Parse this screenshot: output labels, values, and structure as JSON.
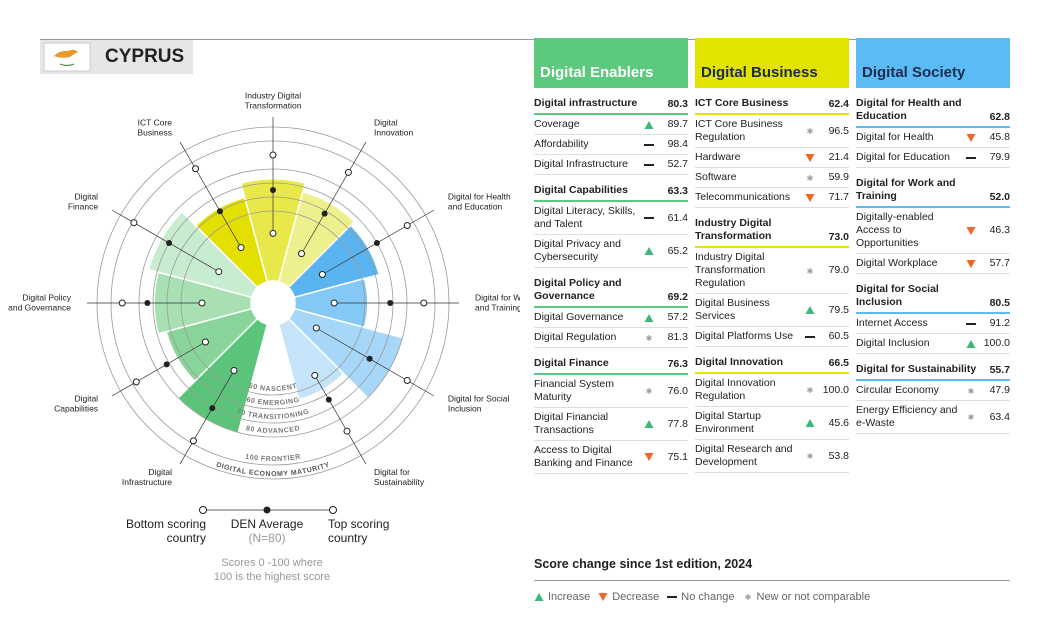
{
  "header": {
    "country": "CYPRUS"
  },
  "radial": {
    "segments": [
      {
        "label": [
          "ICT Core",
          "Business"
        ],
        "color": "#e3df00",
        "value": 62.4,
        "bottom": 30,
        "average": 60,
        "top": 95
      },
      {
        "label": [
          "Industry Digital",
          "Transformation"
        ],
        "color": "#e8e84a",
        "value": 73,
        "bottom": 34,
        "average": 65,
        "top": 90
      },
      {
        "label": [
          "Digital",
          "Innovation"
        ],
        "color": "#eef08e",
        "value": 66.5,
        "bottom": 25,
        "average": 58,
        "top": 92
      },
      {
        "label": [
          "Digital for Health",
          "and Education"
        ],
        "color": "#5ab4f0",
        "value": 62.8,
        "bottom": 25,
        "average": 70,
        "top": 95
      },
      {
        "label": [
          "Digital for Work",
          "and Training"
        ],
        "color": "#84c8f5",
        "value": 52,
        "bottom": 28,
        "average": 68,
        "top": 92
      },
      {
        "label": [
          "Digital for Social",
          "Inclusion"
        ],
        "color": "#a6d6f8",
        "value": 80.5,
        "bottom": 20,
        "average": 64,
        "top": 95
      },
      {
        "label": [
          "Digital for",
          "Sustainability"
        ],
        "color": "#c5e4fa",
        "value": 55.7,
        "bottom": 44,
        "average": 64,
        "top": 90
      },
      {
        "label": [
          "Digital",
          "Infrastructure"
        ],
        "color": "#5cc47a",
        "value": 80.3,
        "bottom": 40,
        "average": 71,
        "top": 98
      },
      {
        "label": [
          "Digital",
          "Capabilities"
        ],
        "color": "#88d49a",
        "value": 63.3,
        "bottom": 40,
        "average": 72,
        "top": 97
      },
      {
        "label": [
          "Digital Policy",
          "and Governance"
        ],
        "color": "#a8e0b3",
        "value": 69.2,
        "bottom": 35,
        "average": 74,
        "top": 92
      },
      {
        "label": [
          "Digital",
          "Finance"
        ],
        "color": "#c8ecd0",
        "value": 76.3,
        "bottom": 29,
        "average": 70,
        "top": 99
      }
    ],
    "rings": [
      {
        "value": 50,
        "label": "50 NASCENT"
      },
      {
        "value": 60,
        "label": "60 EMERGING"
      },
      {
        "value": 70,
        "label": "70 TRANSITIONING"
      },
      {
        "value": 80,
        "label": "80 ADVANCED"
      },
      {
        "value": 100,
        "label": "100 FRONTIER"
      }
    ],
    "scale_title": "DIGITAL ECONOMY MATURITY",
    "legend": {
      "bottom": [
        "Bottom scoring",
        "country"
      ],
      "average": "DEN Average",
      "average_n": "(N=80)",
      "top": [
        "Top scoring",
        "country"
      ]
    },
    "note": [
      "Scores 0 -100 where",
      "100 is the highest score"
    ]
  },
  "columns": [
    {
      "title": "Digital Enablers",
      "color": "#5cc97f",
      "title_color": "#ffffff",
      "pillars": [
        {
          "name": "Digital infrastructure",
          "score": "80.3",
          "indicators": [
            {
              "name": "Coverage",
              "change": "increase",
              "value": "89.7"
            },
            {
              "name": "Affordability",
              "change": "none",
              "value": "98.4"
            },
            {
              "name": "Digital Infrastructure",
              "change": "none",
              "value": "52.7"
            }
          ]
        },
        {
          "name": "Digital Capabilities",
          "score": "63.3",
          "indicators": [
            {
              "name": "Digital Literacy, Skills, and Talent",
              "change": "none",
              "value": "61.4"
            },
            {
              "name": "Digital Privacy and Cybersecurity",
              "change": "increase",
              "value": "65.2"
            }
          ]
        },
        {
          "name": "Digital Policy and Governance",
          "score": "69.2",
          "indicators": [
            {
              "name": "Digital Governance",
              "change": "increase",
              "value": "57.2"
            },
            {
              "name": "Digital Regulation",
              "change": "new",
              "value": "81.3"
            }
          ]
        },
        {
          "name": "Digital Finance",
          "score": "76.3",
          "indicators": [
            {
              "name": "Financial System Maturity",
              "change": "new",
              "value": "76.0"
            },
            {
              "name": "Digital Financial Transactions",
              "change": "increase",
              "value": "77.8"
            },
            {
              "name": "Access to Digital Banking and Finance",
              "change": "decrease",
              "value": "75.1"
            }
          ]
        }
      ]
    },
    {
      "title": "Digital Business",
      "color": "#e3e300",
      "title_color": "#1d2b4f",
      "pillars": [
        {
          "name": "ICT Core Business",
          "score": "62.4",
          "indicators": [
            {
              "name": "ICT Core Business Regulation",
              "change": "new",
              "value": "96.5"
            },
            {
              "name": "Hardware",
              "change": "decrease",
              "value": "21.4"
            },
            {
              "name": "Software",
              "change": "new",
              "value": "59.9"
            },
            {
              "name": "Telecommunications",
              "change": "decrease",
              "value": "71.7"
            }
          ]
        },
        {
          "name": "Industry Digital Transformation",
          "score": "73.0",
          "indicators": [
            {
              "name": "Industry Digital Transformation Regulation",
              "change": "new",
              "value": "79.0"
            },
            {
              "name": "Digital Business Services",
              "change": "increase",
              "value": "79.5"
            },
            {
              "name": "Digital Platforms Use",
              "change": "none",
              "value": "60.5"
            }
          ]
        },
        {
          "name": "Digital Innovation",
          "score": "66.5",
          "indicators": [
            {
              "name": "Digital Innovation Regulation",
              "change": "new",
              "value": "100.0"
            },
            {
              "name": "Digital Startup Environment",
              "change": "increase",
              "value": "45.6"
            },
            {
              "name": "Digital Research and Development",
              "change": "new",
              "value": "53.8"
            }
          ]
        }
      ]
    },
    {
      "title": "Digital Society",
      "color": "#5bbcf5",
      "title_color": "#1d2b4f",
      "pillars": [
        {
          "name": "Digital for Health and Education",
          "score": "62.8",
          "indicators": [
            {
              "name": "Digital for Health",
              "change": "decrease",
              "value": "45.8"
            },
            {
              "name": "Digital for Education",
              "change": "none",
              "value": "79.9"
            }
          ]
        },
        {
          "name": "Digital for Work and Training",
          "score": "52.0",
          "indicators": [
            {
              "name": "Digitally-enabled Access to Opportunities",
              "change": "decrease",
              "value": "46.3"
            },
            {
              "name": "Digital Workplace",
              "change": "decrease",
              "value": "57.7"
            }
          ]
        },
        {
          "name": "Digital for Social Inclusion",
          "score": "80.5",
          "indicators": [
            {
              "name": "Internet Access",
              "change": "none",
              "value": "91.2"
            },
            {
              "name": "Digital Inclusion",
              "change": "increase",
              "value": "100.0"
            }
          ]
        },
        {
          "name": "Digital for Sustainability",
          "score": "55.7",
          "indicators": [
            {
              "name": "Circular Economy",
              "change": "new",
              "value": "47.9"
            },
            {
              "name": "Energy Efficiency and e-Waste",
              "change": "new",
              "value": "63.4"
            }
          ]
        }
      ]
    }
  ],
  "change_legend": {
    "title": "Score change since 1st edition, 2024",
    "items": [
      {
        "key": "increase",
        "label": "Increase"
      },
      {
        "key": "decrease",
        "label": "Decrease"
      },
      {
        "key": "none",
        "label": "No change"
      },
      {
        "key": "new",
        "label": "New or not comparable"
      }
    ]
  }
}
